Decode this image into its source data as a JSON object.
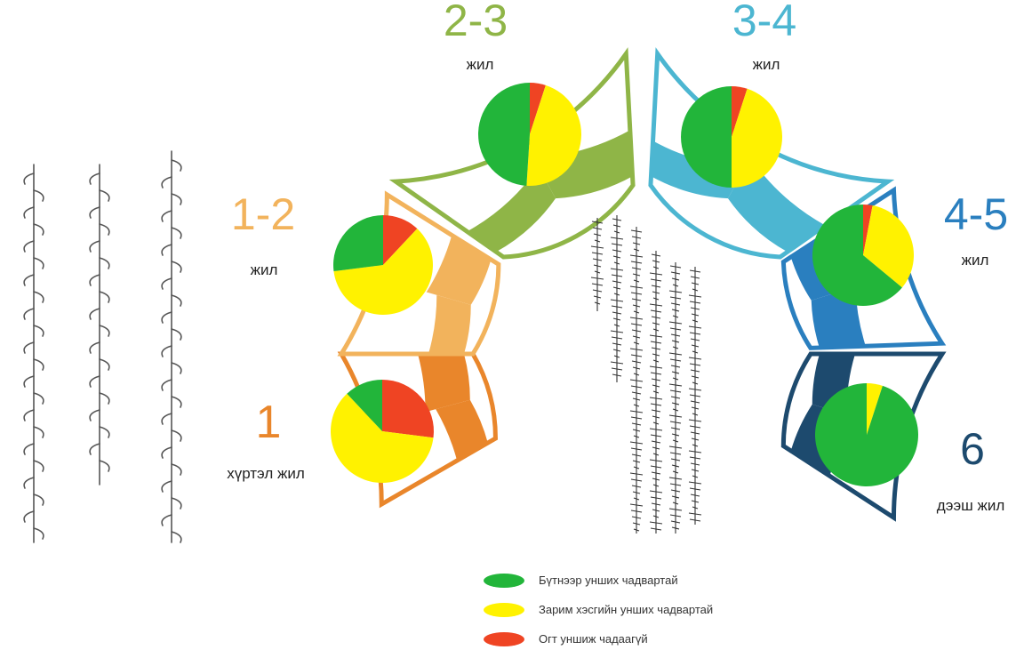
{
  "colors": {
    "full": "#22b53a",
    "partial": "#fff200",
    "none": "#ef4423"
  },
  "legend": [
    {
      "key": "full",
      "label": "Бүтнээр унших чадвартай"
    },
    {
      "key": "partial",
      "label": "Зарим хэсгийн унших чадвартай"
    },
    {
      "key": "none",
      "label": "Огт уншиж чадаагүй"
    }
  ],
  "chart_data": {
    "type": "pie",
    "series_keys": [
      "full",
      "partial",
      "none"
    ],
    "groups": [
      {
        "number": "1",
        "unit": "хүртэл жил",
        "color": "#e9862b",
        "values": [
          12,
          61,
          27
        ]
      },
      {
        "number": "1-2",
        "unit": "жил",
        "color": "#f2b35c",
        "values": [
          27,
          61,
          12
        ]
      },
      {
        "number": "2-3",
        "unit": "жил",
        "color": "#8fb547",
        "values": [
          49,
          46,
          5
        ]
      },
      {
        "number": "3-4",
        "unit": "жил",
        "color": "#4cb6d1",
        "values": [
          50,
          45,
          5
        ]
      },
      {
        "number": "4-5",
        "unit": "жил",
        "color": "#2a7fbf",
        "values": [
          64,
          33,
          3
        ]
      },
      {
        "number": "6",
        "unit": "дээш жил",
        "color": "#1d4a6e",
        "values": [
          95,
          5,
          0
        ]
      }
    ]
  }
}
